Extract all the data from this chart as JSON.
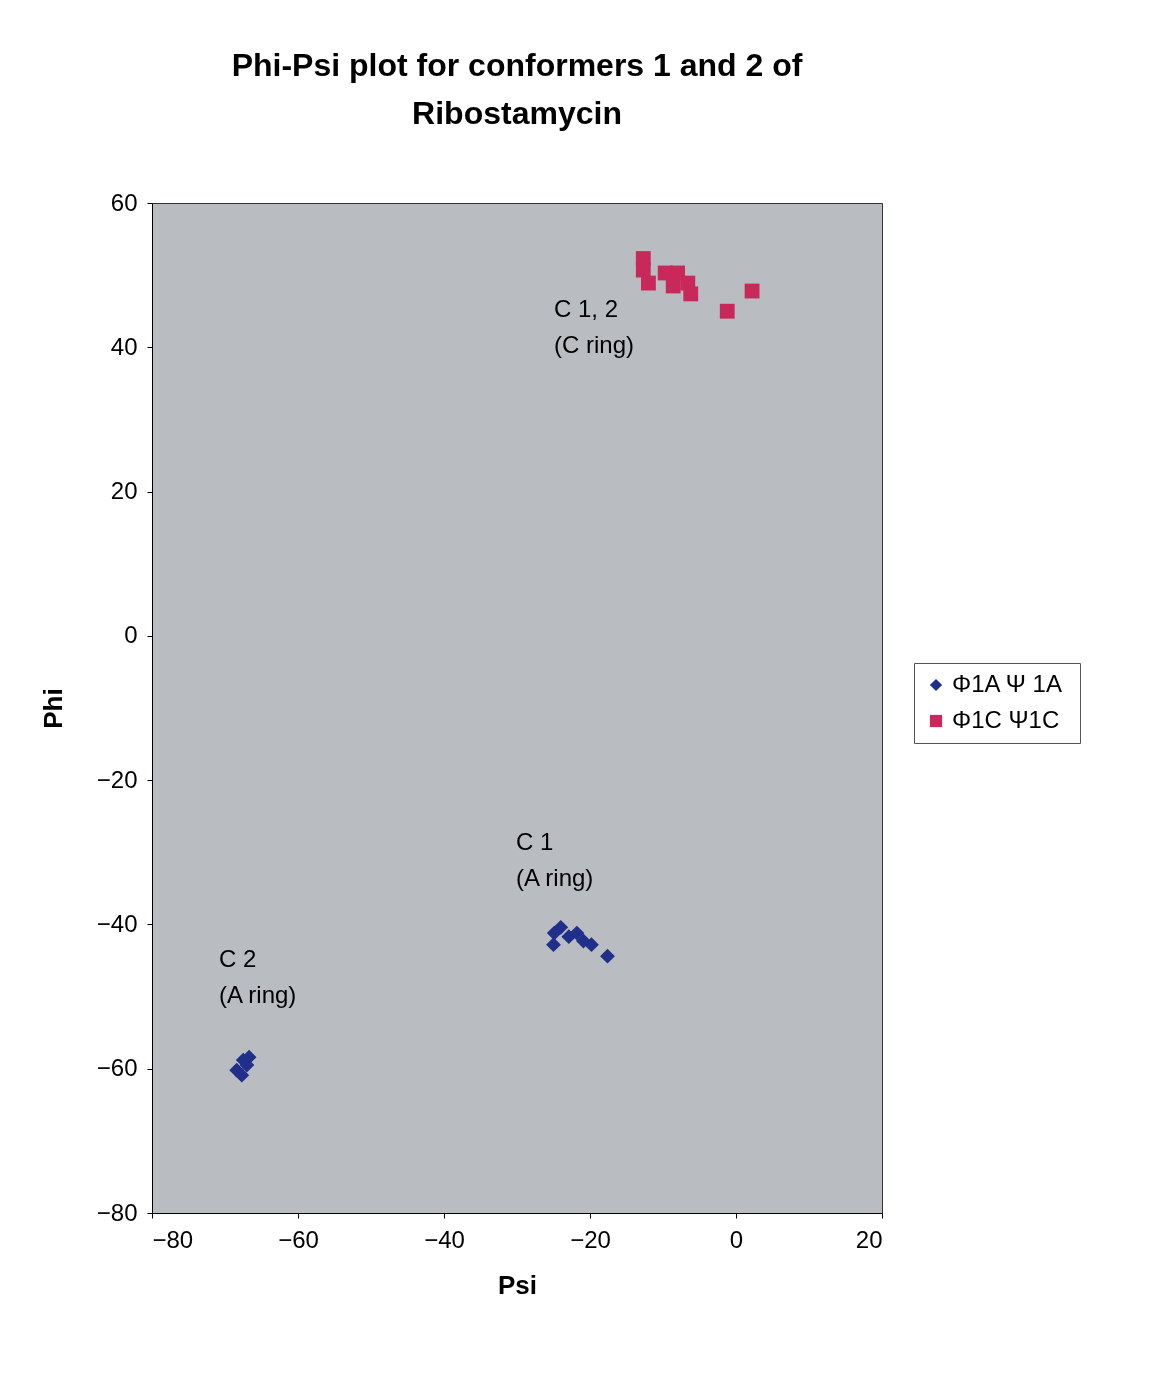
{
  "chart_data": {
    "type": "scatter",
    "title": [
      "Phi-Psi plot for conformers 1 and 2 of",
      "Ribostamycin"
    ],
    "xlabel": "Psi",
    "ylabel": "Phi",
    "xlim": [
      -80,
      20
    ],
    "xticks": [
      -80,
      -60,
      -40,
      -20,
      0,
      20
    ],
    "ylim": [
      -80,
      60
    ],
    "yticks": [
      -80,
      -60,
      -40,
      -20,
      0,
      20,
      40,
      60
    ],
    "grid": false,
    "legend": "right",
    "series": [
      {
        "name": "Φ1A  Ψ 1A",
        "color": "#1f2f8a",
        "marker": "diamond",
        "x": [
          -24.9,
          -24,
          -25,
          -22.9,
          -21.8,
          -20.9,
          -19.8,
          -17.6,
          -68.4,
          -67.5,
          -66.7,
          -67.7,
          -67
        ],
        "values": [
          -41.2,
          -40.4,
          -42.8,
          -41.7,
          -41.2,
          -42.3,
          -42.8,
          -44.4,
          -60.2,
          -58.8,
          -58.4,
          -60.9,
          -59.5
        ]
      },
      {
        "name": "Φ1C Ψ1C",
        "color": "#c8285a",
        "marker": "square",
        "x": [
          -12.7,
          -12.7,
          -12,
          -9.7,
          -8,
          -8.6,
          -6.6,
          -6.2,
          -1.2,
          2.2
        ],
        "values": [
          52.3,
          50.7,
          48.9,
          50.3,
          50.3,
          48.5,
          48.9,
          47.4,
          45,
          47.8
        ]
      }
    ],
    "annotations": [
      "C 1, 2\n(C ring)",
      "C 1\n(A ring)",
      "C 2\n(A ring)"
    ]
  }
}
